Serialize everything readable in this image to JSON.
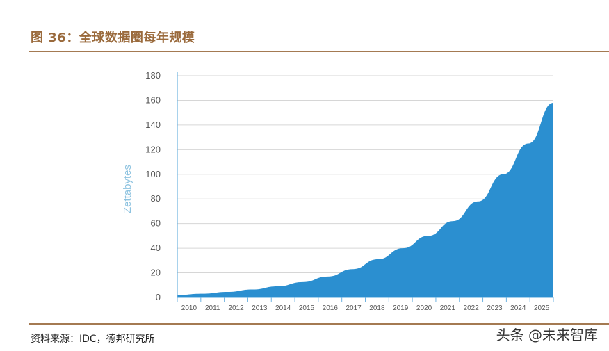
{
  "figure": {
    "title": "图 36：全球数据圈每年规模",
    "source": "资料来源：IDC，德邦研究所",
    "watermark": "头条 @未来智库"
  },
  "colors": {
    "area_fill": "#2b8fd0",
    "axis": "#6fb3e0",
    "grid": "#d6d6d6",
    "title_brown": "#9a6a3c"
  },
  "chart_data": {
    "type": "area",
    "title": "",
    "xlabel": "",
    "ylabel": "Zettabytes",
    "ylim": [
      0,
      180
    ],
    "yticks": [
      0,
      20,
      40,
      60,
      80,
      100,
      120,
      140,
      160,
      180
    ],
    "grid": true,
    "x": [
      "2010",
      "2011",
      "2012",
      "2013",
      "2014",
      "2015",
      "2016",
      "2017",
      "2018",
      "2019",
      "2020",
      "2021",
      "2022",
      "2023",
      "2024",
      "2025"
    ],
    "series": [
      {
        "name": "",
        "values": [
          2,
          3,
          4.5,
          6.5,
          9,
          12.5,
          17,
          23,
          31,
          40,
          50,
          62,
          78,
          100,
          125,
          158
        ]
      }
    ]
  }
}
